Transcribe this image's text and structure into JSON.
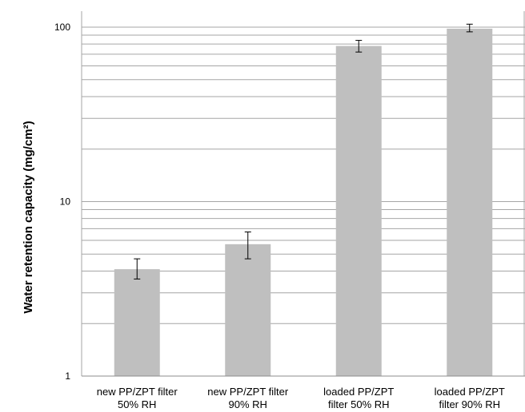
{
  "chart_data": {
    "type": "bar",
    "title": "",
    "xlabel": "",
    "ylabel": "Water retention capacity (mg/cm²)",
    "yscale": "log",
    "ylim": [
      1,
      100
    ],
    "yticks": [
      "1",
      "10",
      "100"
    ],
    "grid": true,
    "categories": [
      {
        "line1": "new PP/ZPT filter",
        "line2": "50% RH"
      },
      {
        "line1": "new PP/ZPT filter",
        "line2": "90% RH"
      },
      {
        "line1": "loaded PP/ZPT",
        "line2": "filter 50% RH"
      },
      {
        "line1": "loaded PP/ZPT",
        "line2": "filter 90% RH"
      }
    ],
    "values": [
      4.1,
      5.7,
      78,
      98
    ],
    "error_low": [
      3.6,
      4.7,
      72,
      94
    ],
    "error_high": [
      4.7,
      6.7,
      84,
      104
    ],
    "bar_color": "#bfbfbf",
    "grid_color": "#a6a6a6"
  }
}
